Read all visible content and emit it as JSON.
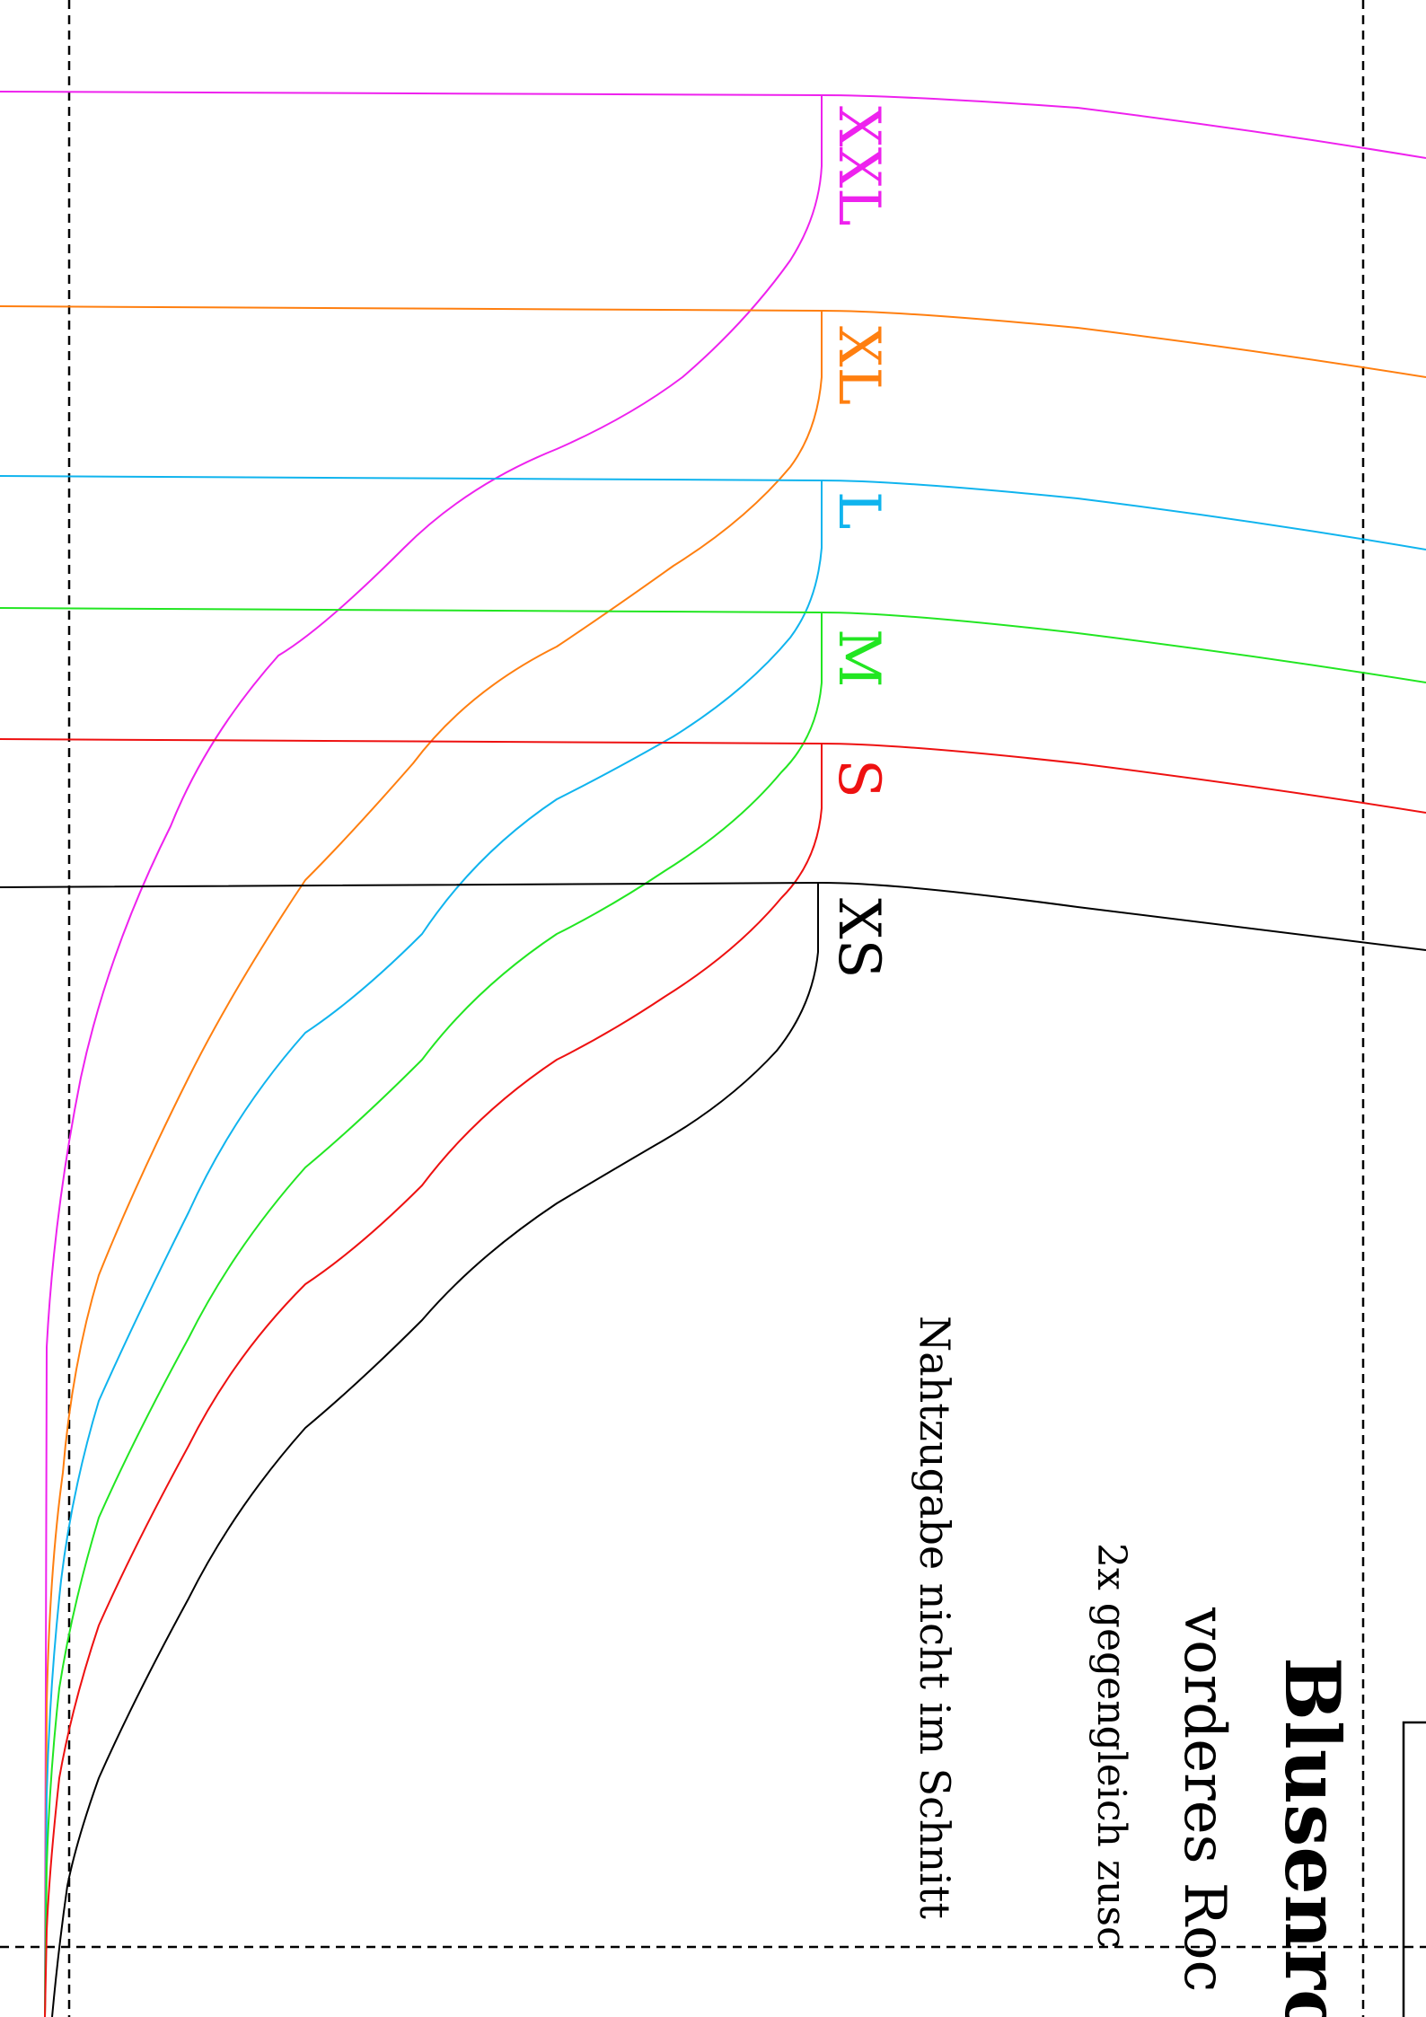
{
  "pattern": {
    "title": "Blusenro",
    "piece": "vorderes Roc",
    "cut_instruction": "2x gegengleich zusc",
    "seam_note": "Nahtzugabe nicht im Schnitt"
  },
  "sizes": [
    {
      "label": "XXL",
      "color": "#ee22ee"
    },
    {
      "label": "XL",
      "color": "#ff7f10"
    },
    {
      "label": "L",
      "color": "#10b4ee"
    },
    {
      "label": "M",
      "color": "#22e622"
    },
    {
      "label": "S",
      "color": "#ee1111"
    },
    {
      "label": "XS",
      "color": "#000000"
    }
  ]
}
